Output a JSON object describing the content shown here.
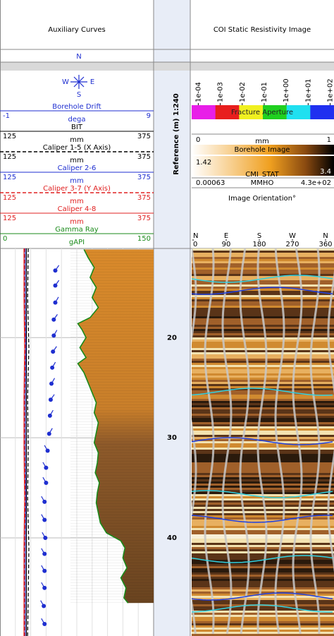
{
  "tracks": {
    "auxiliary": {
      "title": "Auxiliary Curves"
    },
    "image": {
      "title": "COI Static Resistivity Image"
    }
  },
  "depth_track": {
    "label": "Reference (m) 1:240",
    "ylim": [
      11.1,
      49.8
    ],
    "ticks": [
      20,
      30,
      40
    ]
  },
  "compass": {
    "north": "N",
    "west": "W",
    "east": "E",
    "south": "S"
  },
  "curves": [
    {
      "name": "Borehole Drift",
      "color": "#1f2fd0",
      "min": -1,
      "unit": "dega",
      "max": 9,
      "style": "tadpole",
      "depths": [
        13.3,
        14.8,
        16.5,
        18.2,
        19.8,
        21.4,
        23,
        24.6,
        26.2,
        27.8,
        29.6,
        31.3,
        33,
        34.5,
        36.4,
        38.2,
        40,
        41.6,
        43.3,
        45,
        46.8,
        48.6
      ],
      "values": [
        2.6,
        2.6,
        2.6,
        2.5,
        2.5,
        2.45,
        2.4,
        2.35,
        2.3,
        2.25,
        2.2,
        2.1,
        2.0,
        2.0,
        1.9,
        1.9,
        1.95,
        1.9,
        1.9,
        1.9,
        1.85,
        1.9
      ],
      "azimuths": [
        35,
        35,
        30,
        35,
        30,
        35,
        30,
        30,
        35,
        30,
        30,
        330,
        330,
        330,
        330,
        330,
        330,
        330,
        330,
        330,
        330,
        330
      ]
    },
    {
      "name": "BIT",
      "color": "#000000",
      "min": 125,
      "unit": "mm",
      "max": 375,
      "style": "solid",
      "depths": [
        11.1,
        49.8
      ],
      "values": [
        168,
        168
      ]
    },
    {
      "name": "Caliper 1-5 (X Axis)",
      "color": "#000000",
      "min": 125,
      "unit": "mm",
      "max": 375,
      "style": "dashed",
      "depths": [
        11.1,
        16,
        21,
        26,
        31,
        36,
        41,
        46,
        49.8
      ],
      "values": [
        171,
        170,
        172,
        170,
        171,
        170,
        172,
        171,
        170
      ]
    },
    {
      "name": "Caliper 2-6",
      "color": "#1f2fd0",
      "min": 125,
      "unit": "mm",
      "max": 375,
      "style": "solid",
      "depths": [
        11.1,
        16,
        21,
        26,
        31,
        36,
        41,
        46,
        49.8
      ],
      "values": [
        166,
        166,
        167,
        166,
        166,
        167,
        166,
        166,
        166
      ]
    },
    {
      "name": "Caliper 3-7 (Y Axis)",
      "color": "#e02020",
      "min": 125,
      "unit": "mm",
      "max": 375,
      "style": "dashed",
      "depths": [
        11.1,
        16,
        21,
        26,
        31,
        36,
        41,
        46,
        49.8
      ],
      "values": [
        165,
        165,
        166,
        165,
        165,
        166,
        165,
        165,
        165
      ]
    },
    {
      "name": "Caliper 4-8",
      "color": "#e02020",
      "min": 125,
      "unit": "mm",
      "max": 375,
      "style": "solid",
      "depths": [
        11.1,
        16,
        21,
        26,
        31,
        36,
        41,
        46,
        49.8
      ],
      "values": [
        164,
        164,
        165,
        164,
        164,
        165,
        164,
        164,
        164
      ]
    },
    {
      "name": "Gamma Ray",
      "color": "#1a8a1a",
      "min": 0,
      "unit": "gAPI",
      "max": 150,
      "style": "fill",
      "depths": [
        11.2,
        12,
        13,
        14,
        15,
        16,
        17,
        18,
        18.6,
        19.2,
        20,
        21,
        22,
        22.6,
        23.5,
        24.5,
        25.5,
        26.5,
        27.5,
        28.5,
        29.5,
        30.5,
        31.5,
        32.5,
        33.5,
        34.5,
        35.5,
        36.5,
        37.5,
        38.5,
        39.5,
        40.3,
        41,
        42,
        43,
        44,
        45,
        46,
        46.5
      ],
      "values": [
        82,
        86,
        92,
        88,
        94,
        90,
        96,
        88,
        76,
        80,
        84,
        78,
        84,
        76,
        82,
        86,
        90,
        94,
        92,
        96,
        94,
        92,
        96,
        95,
        93,
        97,
        95,
        94,
        96,
        98,
        104,
        118,
        122,
        120,
        124,
        118,
        123,
        121,
        125
      ]
    }
  ],
  "fracture_aperture": {
    "label": "Fracture Aperture",
    "log": true,
    "xlim": [
      5e-05,
      150
    ],
    "ticks": [
      {
        "value": 0.0001,
        "label": "1e-04"
      },
      {
        "value": 0.001,
        "label": "1e-03"
      },
      {
        "value": 0.01,
        "label": "1e-02"
      },
      {
        "value": 0.1,
        "label": "1e-01"
      },
      {
        "value": 1,
        "label": "1e+00"
      },
      {
        "value": 10,
        "label": "1e+01"
      },
      {
        "value": 100,
        "label": "1e+02"
      }
    ],
    "colors": [
      "#e81ee8",
      "#e81e1e",
      "#f0f020",
      "#20d020",
      "#20e0f0",
      "#2030f0"
    ]
  },
  "borehole_image": {
    "label": "Borehole Image",
    "min": 0,
    "unit": "mm",
    "max": 1
  },
  "cmi_stat": {
    "label": "CMI_STAT",
    "min": 1.42,
    "max": 3.4
  },
  "conductivity": {
    "min": 0.00063,
    "unit": "MMHO",
    "max": {
      "value": 430,
      "label": "4.3e+02"
    }
  },
  "orientation": {
    "label": "Image Orientation°",
    "directions": [
      "N",
      "E",
      "S",
      "W",
      "N"
    ],
    "ticks": [
      0,
      90,
      180,
      270,
      360
    ]
  }
}
